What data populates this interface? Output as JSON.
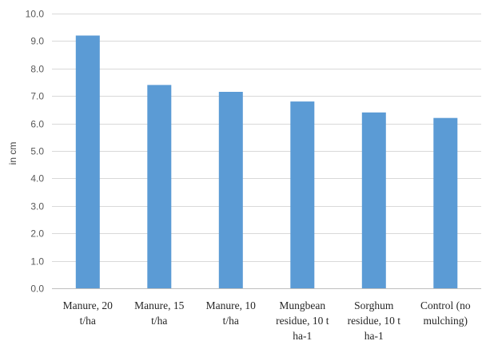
{
  "chart_data": {
    "type": "bar",
    "title": "",
    "xlabel": "",
    "ylabel": "in cm",
    "ylim": [
      0,
      10
    ],
    "y_ticks": [
      "0.0",
      "1.0",
      "2.0",
      "3.0",
      "4.0",
      "5.0",
      "6.0",
      "7.0",
      "8.0",
      "9.0",
      "10.0"
    ],
    "grid": true,
    "legend": "none",
    "bar_color": "#5b9bd5",
    "categories": [
      [
        "Manure, 20",
        "t/ha"
      ],
      [
        "Manure, 15",
        "t/ha"
      ],
      [
        "Manure, 10",
        "t/ha"
      ],
      [
        "Mungbean",
        "residue, 10 t",
        "ha-1"
      ],
      [
        "Sorghum",
        "residue, 10 t",
        "ha-1"
      ],
      [
        "Control (no",
        "mulching)"
      ]
    ],
    "values": [
      9.2,
      7.4,
      7.15,
      6.8,
      6.4,
      6.2
    ]
  }
}
